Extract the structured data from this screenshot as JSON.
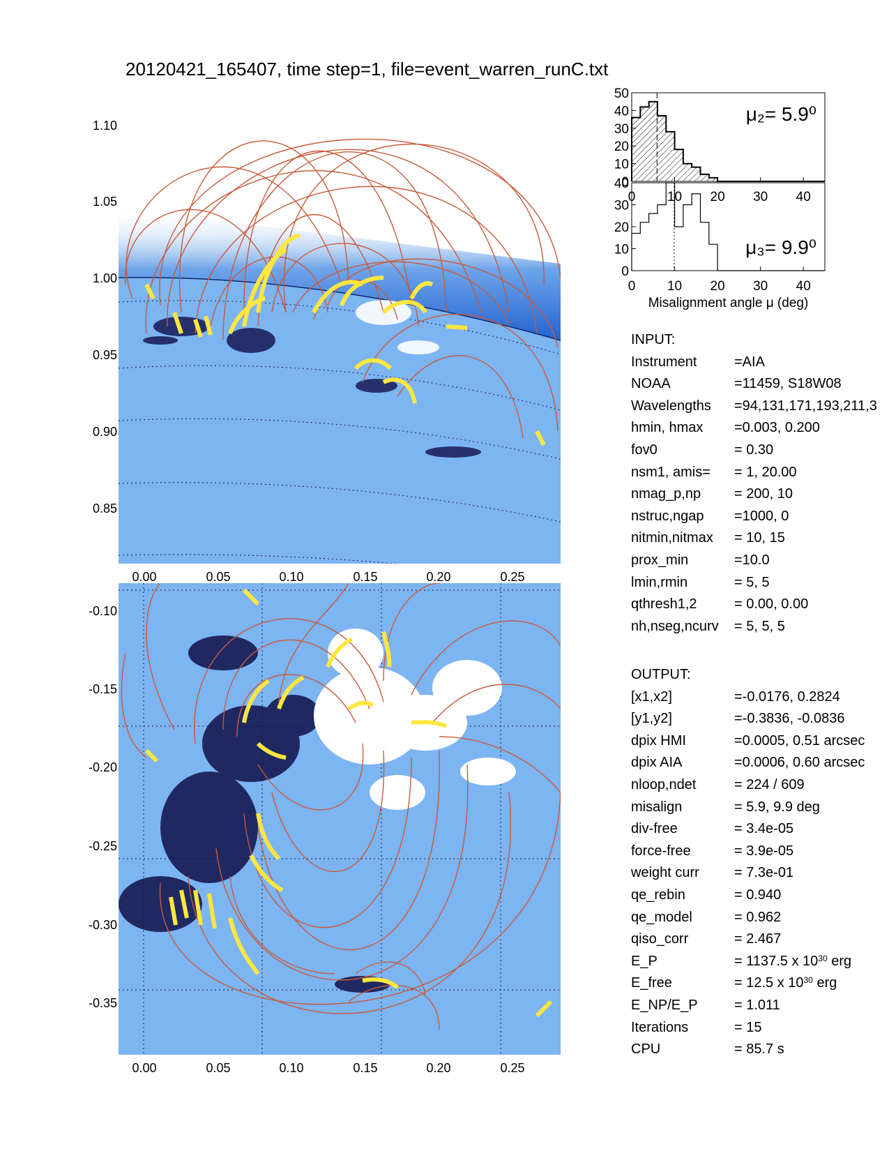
{
  "title": "20120421_165407, time step=1, file=event_warren_runC.txt",
  "colors": {
    "disk": "#7db4f2",
    "limb_dark": "#2f6fd6",
    "loop": "#c85a3a",
    "strand": "#ffe640",
    "negative_polarity": "#10104a",
    "positive_polarity": "#ffffff"
  },
  "top_panel": {
    "y_ticks": [
      "1.10",
      "1.05",
      "1.00",
      "0.95",
      "0.90",
      "0.85"
    ],
    "x_ticks": [
      "0.00",
      "0.05",
      "0.10",
      "0.15",
      "0.20",
      "0.25"
    ]
  },
  "bottom_panel": {
    "y_ticks": [
      "-0.10",
      "-0.15",
      "-0.20",
      "-0.25",
      "-0.30",
      "-0.35"
    ],
    "x_ticks": [
      "0.00",
      "0.05",
      "0.10",
      "0.15",
      "0.20",
      "0.25"
    ]
  },
  "chart_data": [
    {
      "type": "bar",
      "panel": "misalignment histogram 2",
      "annotation": "μ₂= 5.9⁰",
      "x": [
        0,
        2,
        4,
        6,
        8,
        10,
        12,
        14,
        16,
        18,
        20
      ],
      "values": [
        36,
        42,
        45,
        37,
        28,
        18,
        10,
        8,
        4,
        2,
        0
      ],
      "hatched": true,
      "mean_marker": 5.9,
      "ylim": [
        0,
        50
      ],
      "y_ticks": [
        "50",
        "40",
        "30",
        "20",
        "10",
        "0"
      ],
      "xlim": [
        0,
        45
      ],
      "x_ticks": [
        "0",
        "10",
        "20",
        "30",
        "40"
      ]
    },
    {
      "type": "bar",
      "panel": "misalignment histogram 3",
      "annotation": "μ₃= 9.9⁰",
      "x": [
        0,
        2,
        4,
        6,
        8,
        10,
        12,
        14,
        16,
        18,
        20
      ],
      "values": [
        17,
        22,
        26,
        30,
        40,
        20,
        30,
        35,
        22,
        12,
        0
      ],
      "hatched": false,
      "mean_marker": 9.9,
      "ylim": [
        0,
        40
      ],
      "y_ticks": [
        "40",
        "30",
        "20",
        "10",
        "0"
      ],
      "xlim": [
        0,
        45
      ],
      "x_ticks": [
        "0",
        "10",
        "20",
        "30",
        "40"
      ],
      "xlabel": "Misalignment angle μ (deg)"
    }
  ],
  "input": {
    "header": "INPUT:",
    "rows": [
      {
        "k": "Instrument",
        "v": "=AIA"
      },
      {
        "k": "NOAA",
        "v": "=11459, S18W08"
      },
      {
        "k": "Wavelengths",
        "v": "=94,131,171,193,211,3"
      },
      {
        "k": "hmin, hmax",
        "v": "=0.003, 0.200"
      },
      {
        "k": "fov0",
        "v": "= 0.30"
      },
      {
        "k": "nsm1, amis=",
        "v": "=   1, 20.00"
      },
      {
        "k": "nmag_p,np",
        "v": "= 200,   10"
      },
      {
        "k": "nstruc,ngap",
        "v": "=1000,    0"
      },
      {
        "k": "nitmin,nitmax",
        "v": "=  10,   15"
      },
      {
        "k": "prox_min",
        "v": "=10.0"
      },
      {
        "k": "lmin,rmin",
        "v": "=   5,    5"
      },
      {
        "k": "qthresh1,2",
        "v": "= 0.00,  0.00"
      },
      {
        "k": "nh,nseg,ncurv",
        "v": "= 5,  5,  5"
      }
    ]
  },
  "output": {
    "header": "OUTPUT:",
    "rows": [
      {
        "k": "[x1,x2]",
        "v": "=-0.0176,  0.2824"
      },
      {
        "k": "[y1,y2]",
        "v": "=-0.3836, -0.0836"
      },
      {
        "k": "dpix HMI",
        "v": "=0.0005,  0.51 arcsec"
      },
      {
        "k": "dpix AIA",
        "v": "=0.0006,  0.60 arcsec"
      },
      {
        "k": "nloop,ndet",
        "v": "= 224 /  609"
      },
      {
        "k": "misalign",
        "v": "=  5.9,    9.9 deg"
      },
      {
        "k": "div-free",
        "v": "= 3.4e-05"
      },
      {
        "k": "force-free",
        "v": "= 3.9e-05"
      },
      {
        "k": "weight curr",
        "v": "= 7.3e-01"
      },
      {
        "k": "qe_rebin",
        "v": "= 0.940"
      },
      {
        "k": "qe_model",
        "v": "= 0.962"
      },
      {
        "k": "qiso_corr",
        "v": "= 2.467"
      },
      {
        "k": "E_P",
        "v": "= 1137.5 x 10",
        "sup": "30",
        "tail": " erg"
      },
      {
        "k": "E_free",
        "v": "=  12.5 x 10",
        "sup": "30",
        "tail": " erg"
      },
      {
        "k": "E_NP/E_P",
        "v": "= 1.011"
      },
      {
        "k": "Iterations",
        "v": "= 15"
      },
      {
        "k": "CPU",
        "v": "=    85.7 s"
      }
    ]
  }
}
